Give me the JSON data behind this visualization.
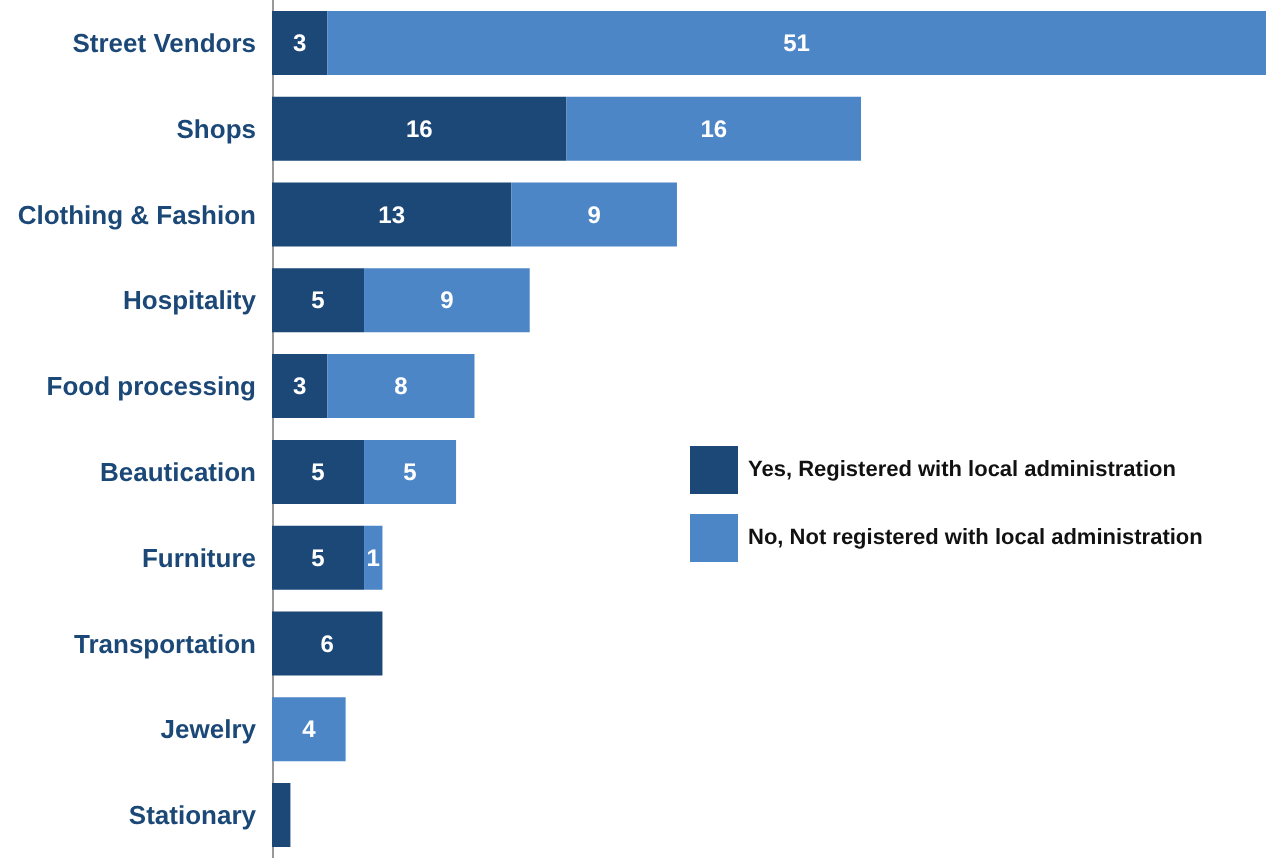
{
  "chart_data": {
    "type": "bar",
    "orientation": "horizontal",
    "stacked": true,
    "categories": [
      "Street Vendors",
      "Shops",
      "Clothing & Fashion",
      "Hospitality",
      "Food processing",
      "Beautication",
      "Furniture",
      "Transportation",
      "Jewelry",
      "Stationary"
    ],
    "series": [
      {
        "name": "Yes, Registered with local administration",
        "color": "#1b4877",
        "values": [
          3,
          16,
          13,
          5,
          3,
          5,
          5,
          6,
          null,
          1
        ],
        "value_labels": [
          "3",
          "16",
          "13",
          "5",
          "3",
          "5",
          "5",
          "6",
          null,
          null
        ]
      },
      {
        "name": "No, Not registered with local administration",
        "color": "#4d86c6",
        "values": [
          51,
          16,
          9,
          9,
          8,
          5,
          1,
          null,
          4,
          null
        ],
        "value_labels": [
          "51",
          "16",
          "9",
          "9",
          "8",
          "5",
          "1",
          null,
          "4",
          null
        ]
      }
    ],
    "legend": "right"
  }
}
